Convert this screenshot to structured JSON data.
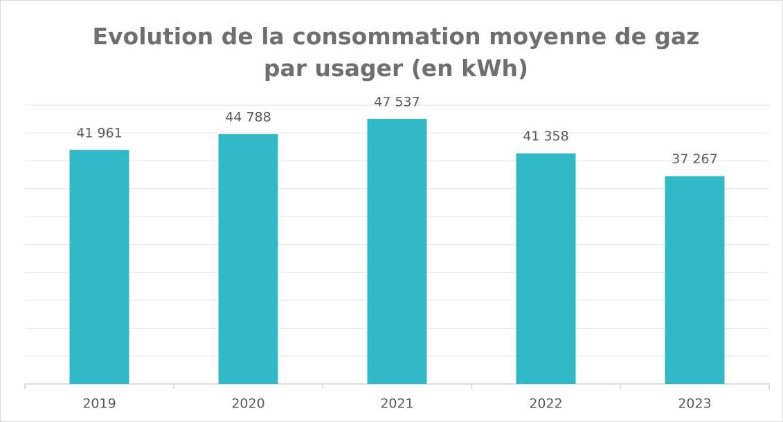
{
  "chart_data": {
    "type": "bar",
    "title": "Evolution de la consommation moyenne de gaz par usager (en kWh)",
    "categories": [
      "2019",
      "2020",
      "2021",
      "2022",
      "2023"
    ],
    "values": [
      41961,
      44788,
      47537,
      41358,
      37267
    ],
    "value_labels": [
      "41 961",
      "44 788",
      "47 537",
      "41 358",
      "37 267"
    ],
    "color": "#31b9c7",
    "ylim": [
      0,
      50000
    ],
    "yticks": [
      0,
      5000,
      10000,
      15000,
      20000,
      25000,
      30000,
      35000,
      40000,
      45000,
      50000
    ],
    "grid": true
  }
}
